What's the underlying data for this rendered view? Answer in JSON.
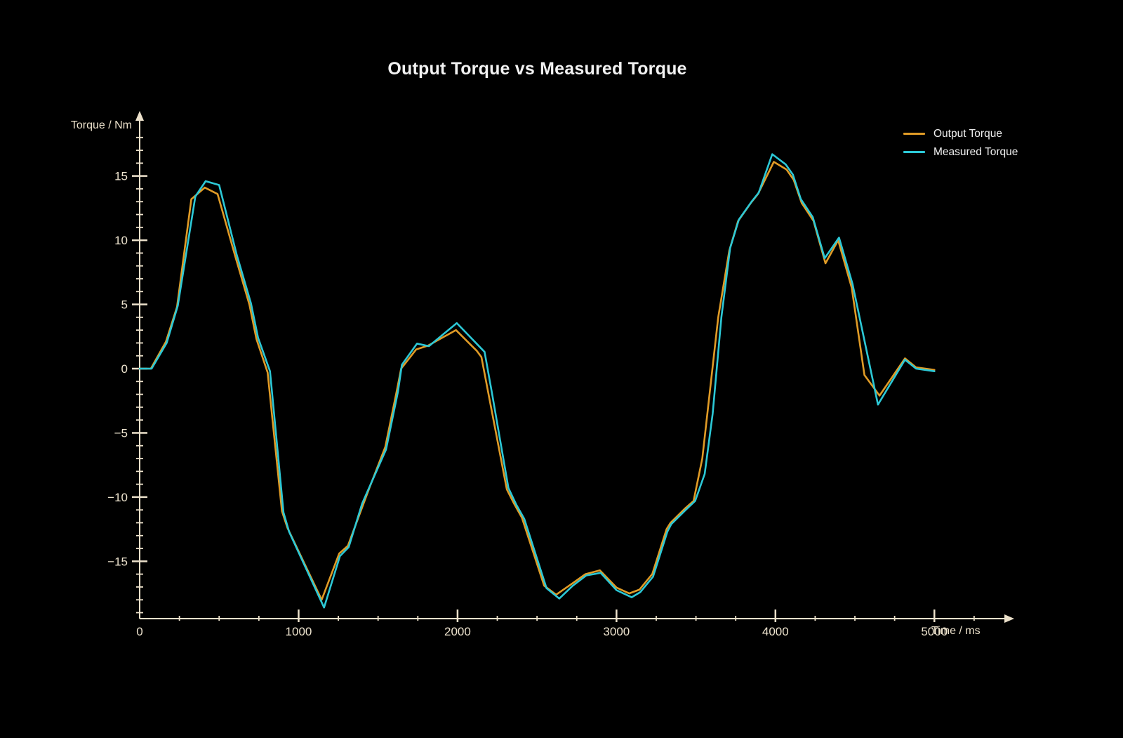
{
  "chart_data": {
    "type": "line",
    "title": "Output Torque vs Measured Torque",
    "xlabel": "Time / ms",
    "ylabel": "Torque / Nm",
    "xlim": [
      0,
      5450
    ],
    "ylim": [
      -19.5,
      19.5
    ],
    "grid": false,
    "background": "#000000",
    "axis_color": "#ece1cb",
    "tick_label_color": "#eee4cf",
    "legend_position": "top-right",
    "x_ticks": {
      "values": [
        0,
        1000,
        2000,
        3000,
        4000,
        5000
      ],
      "labels": [
        "0",
        "1000",
        "2000",
        "3000",
        "4000",
        "5000"
      ],
      "minor_step": 250
    },
    "y_ticks": {
      "values": [
        15,
        10,
        5,
        0,
        -5,
        -10,
        -15
      ],
      "labels": [
        "15",
        "10",
        "5",
        "0",
        "−5",
        "−10",
        "−15"
      ],
      "minor_step": 1
    },
    "series": [
      {
        "name": "Output Torque",
        "color": "#e09b26",
        "points": [
          [
            0,
            0
          ],
          [
            70,
            0
          ],
          [
            165,
            2.1
          ],
          [
            235,
            4.8
          ],
          [
            325,
            13.2
          ],
          [
            410,
            14.1
          ],
          [
            490,
            13.6
          ],
          [
            600,
            8.8
          ],
          [
            690,
            5.0
          ],
          [
            735,
            2.3
          ],
          [
            805,
            -0.3
          ],
          [
            895,
            -11.1
          ],
          [
            930,
            -12.4
          ],
          [
            1145,
            -18.0
          ],
          [
            1255,
            -14.4
          ],
          [
            1310,
            -13.8
          ],
          [
            1445,
            -9.3
          ],
          [
            1545,
            -6.1
          ],
          [
            1620,
            -1.6
          ],
          [
            1645,
            0.0
          ],
          [
            1740,
            1.5
          ],
          [
            1815,
            1.8
          ],
          [
            1990,
            3.0
          ],
          [
            2120,
            1.4
          ],
          [
            2150,
            0.9
          ],
          [
            2310,
            -9.4
          ],
          [
            2355,
            -10.5
          ],
          [
            2405,
            -11.6
          ],
          [
            2545,
            -16.9
          ],
          [
            2620,
            -17.6
          ],
          [
            2725,
            -16.7
          ],
          [
            2805,
            -16.0
          ],
          [
            2895,
            -15.7
          ],
          [
            3000,
            -17.05
          ],
          [
            3080,
            -17.5
          ],
          [
            3145,
            -17.2
          ],
          [
            3225,
            -16.0
          ],
          [
            3315,
            -12.5
          ],
          [
            3340,
            -12.0
          ],
          [
            3430,
            -10.9
          ],
          [
            3485,
            -10.3
          ],
          [
            3540,
            -7.0
          ],
          [
            3640,
            4.0
          ],
          [
            3710,
            9.2
          ],
          [
            3765,
            11.5
          ],
          [
            3845,
            12.9
          ],
          [
            3890,
            13.6
          ],
          [
            3990,
            16.1
          ],
          [
            4070,
            15.5
          ],
          [
            4115,
            14.7
          ],
          [
            4165,
            12.9
          ],
          [
            4240,
            11.5
          ],
          [
            4315,
            8.2
          ],
          [
            4395,
            10.0
          ],
          [
            4480,
            6.3
          ],
          [
            4560,
            -0.5
          ],
          [
            4655,
            -2.1
          ],
          [
            4815,
            0.8
          ],
          [
            4885,
            0.1
          ],
          [
            5000,
            -0.1
          ]
        ]
      },
      {
        "name": "Measured Torque",
        "color": "#2cc8d6",
        "points": [
          [
            0,
            0
          ],
          [
            75,
            0
          ],
          [
            170,
            2.0
          ],
          [
            240,
            4.9
          ],
          [
            350,
            13.4
          ],
          [
            415,
            14.6
          ],
          [
            500,
            14.3
          ],
          [
            610,
            8.9
          ],
          [
            700,
            5.1
          ],
          [
            745,
            2.4
          ],
          [
            820,
            -0.2
          ],
          [
            905,
            -11.2
          ],
          [
            940,
            -12.7
          ],
          [
            1160,
            -18.6
          ],
          [
            1260,
            -14.6
          ],
          [
            1315,
            -13.9
          ],
          [
            1400,
            -10.5
          ],
          [
            1550,
            -6.3
          ],
          [
            1625,
            -1.8
          ],
          [
            1650,
            0.3
          ],
          [
            1745,
            1.95
          ],
          [
            1820,
            1.75
          ],
          [
            1995,
            3.55
          ],
          [
            2170,
            1.3
          ],
          [
            2215,
            -1.8
          ],
          [
            2320,
            -9.3
          ],
          [
            2370,
            -10.6
          ],
          [
            2420,
            -11.7
          ],
          [
            2560,
            -17.1
          ],
          [
            2640,
            -17.9
          ],
          [
            2725,
            -16.9
          ],
          [
            2810,
            -16.1
          ],
          [
            2900,
            -15.9
          ],
          [
            3000,
            -17.25
          ],
          [
            3095,
            -17.8
          ],
          [
            3150,
            -17.4
          ],
          [
            3230,
            -16.2
          ],
          [
            3320,
            -12.7
          ],
          [
            3345,
            -12.1
          ],
          [
            3435,
            -11.0
          ],
          [
            3495,
            -10.3
          ],
          [
            3555,
            -8.2
          ],
          [
            3605,
            -3.5
          ],
          [
            3660,
            4.0
          ],
          [
            3715,
            9.4
          ],
          [
            3770,
            11.6
          ],
          [
            3850,
            13.0
          ],
          [
            3895,
            13.7
          ],
          [
            3980,
            16.7
          ],
          [
            4065,
            15.9
          ],
          [
            4110,
            15.1
          ],
          [
            4160,
            13.2
          ],
          [
            4235,
            11.8
          ],
          [
            4310,
            8.6
          ],
          [
            4400,
            10.2
          ],
          [
            4485,
            6.6
          ],
          [
            4645,
            -2.8
          ],
          [
            4815,
            0.7
          ],
          [
            4885,
            0.0
          ],
          [
            5000,
            -0.2
          ]
        ]
      }
    ]
  }
}
